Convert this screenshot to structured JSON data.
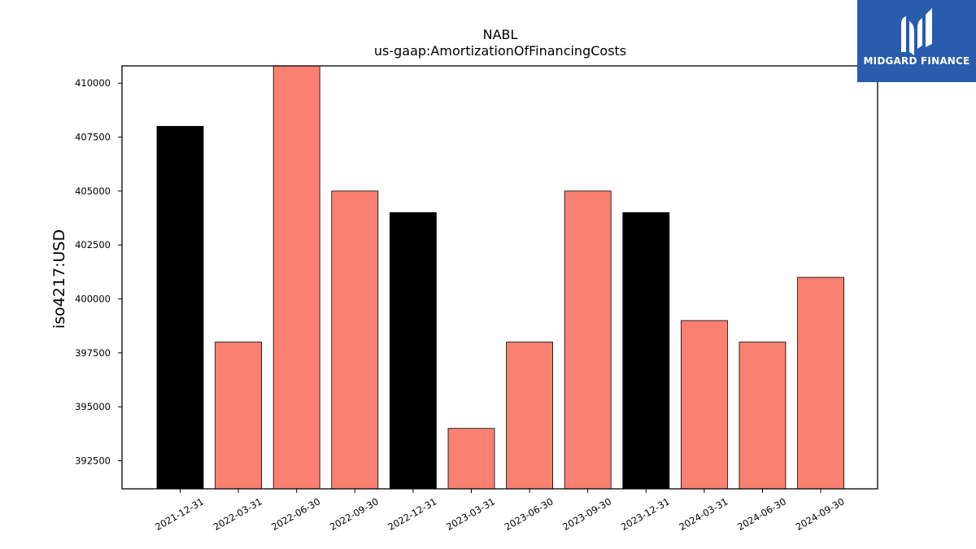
{
  "brand": {
    "name": "MIDGARD FINANCE",
    "bg_color": "#2a5cad",
    "icon": "midgard-m-logo-icon"
  },
  "chart_data": {
    "type": "bar",
    "title": "NABL",
    "subtitle": "us-gaap:AmortizationOfFinancingCosts",
    "xlabel": "",
    "ylabel": "iso4217:USD",
    "categories": [
      "2021-12-31",
      "2022-03-31",
      "2022-06-30",
      "2022-09-30",
      "2022-12-31",
      "2023-03-31",
      "2023-06-30",
      "2023-09-30",
      "2023-12-31",
      "2024-03-31",
      "2024-06-30",
      "2024-09-30"
    ],
    "values": [
      408000,
      398000,
      411000,
      405000,
      404000,
      394000,
      398000,
      405000,
      404000,
      399000,
      398000,
      401000
    ],
    "bar_colors": [
      "#000000",
      "#fa8072",
      "#fa8072",
      "#fa8072",
      "#000000",
      "#fa8072",
      "#fa8072",
      "#fa8072",
      "#000000",
      "#fa8072",
      "#fa8072",
      "#fa8072"
    ],
    "ylim": [
      391200,
      410800
    ],
    "yticks": [
      392500,
      395000,
      397500,
      400000,
      402500,
      405000,
      407500,
      410000
    ],
    "grid": false,
    "legend": "none"
  }
}
